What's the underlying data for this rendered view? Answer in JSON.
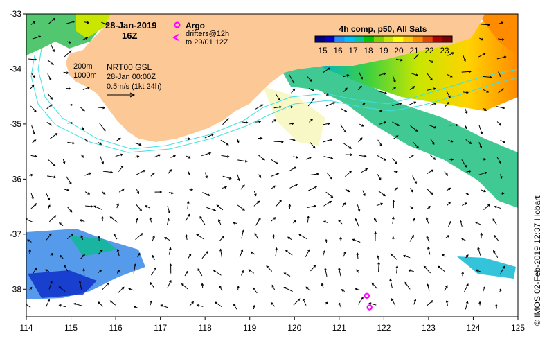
{
  "header": {
    "date": "28-Jan-2019",
    "time": "16Z"
  },
  "legend": {
    "argo_label": "Argo",
    "drifters_line1": "drifters@12h",
    "drifters_line2": "to 29/01 12Z",
    "argo_color": "#ff00ff"
  },
  "colorbar": {
    "title": "4h comp, p50, All Sats",
    "ticks": [
      "15",
      "16",
      "17",
      "18",
      "19",
      "20",
      "21",
      "22",
      "23"
    ],
    "min": 14.5,
    "max": 23.5,
    "colors": [
      "#000080",
      "#0000cd",
      "#1e90ff",
      "#00bfff",
      "#00c8a0",
      "#00c800",
      "#7fd200",
      "#c8e600",
      "#ffff00",
      "#ffc800",
      "#ff8c00",
      "#e64600",
      "#b40000",
      "#800000"
    ]
  },
  "annotations": {
    "depth_200": "200m",
    "depth_1000": "1000m",
    "product": "NRT00 GSL",
    "product_time": "28-Jan 00:00Z",
    "scale_label": "0.5m/s (1kt 24h)",
    "scale_value_ms": 0.5
  },
  "axes": {
    "lon_range": [
      114,
      125
    ],
    "lat_range": [
      -38.5,
      -33
    ],
    "lon_ticks": [
      "114",
      "115",
      "116",
      "117",
      "118",
      "119",
      "120",
      "121",
      "122",
      "123",
      "124",
      "125"
    ],
    "lat_ticks": [
      "-33",
      "-34",
      "-35",
      "-36",
      "-37",
      "-38"
    ]
  },
  "argo_floats": [
    {
      "lon": 121.62,
      "lat": -38.12
    },
    {
      "lon": 121.68,
      "lat": -38.33
    }
  ],
  "credit": "© IMOS 02-Feb-2019 12:37 Hobart",
  "colors": {
    "land": "#fbc896",
    "contour": "#40e0e0",
    "arrow": "#000000"
  }
}
